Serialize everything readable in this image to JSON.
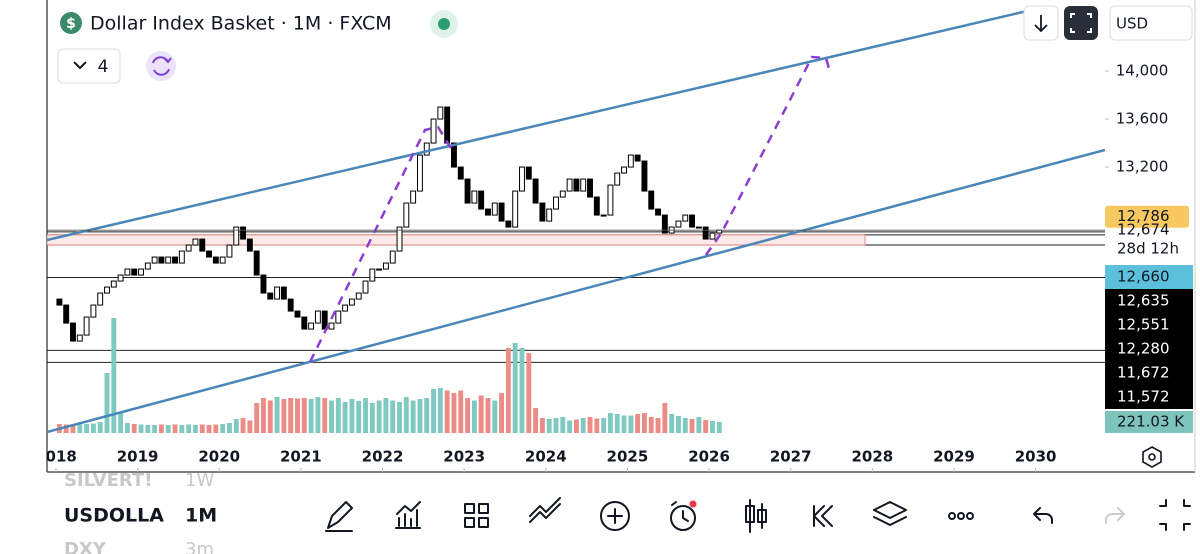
{
  "header": {
    "symbol_icon": "$",
    "title": "Dollar Index Basket · 1M · FXCM",
    "indicator_count": "4",
    "currency": "USD"
  },
  "chart_data": {
    "type": "candlestick",
    "first_open": 12100,
    "closes": [
      12050,
      11900,
      11750,
      11800,
      11950,
      12050,
      12150,
      12200,
      12250,
      12300,
      12350,
      12300,
      12350,
      12400,
      12450,
      12400,
      12450,
      12400,
      12500,
      12550,
      12600,
      12500,
      12450,
      12400,
      12450,
      12550,
      12700,
      12600,
      12500,
      12300,
      12150,
      12100,
      12200,
      12100,
      12000,
      11950,
      11850,
      11900,
      12000,
      11850,
      11900,
      12000,
      12050,
      12100,
      12150,
      12250,
      12350,
      12350,
      12400,
      12500,
      12700,
      12900,
      13000,
      13300,
      13400,
      13600,
      13700,
      13400,
      13200,
      13100,
      12900,
      13000,
      12850,
      12800,
      12900,
      12750,
      12700,
      13000,
      13200,
      13100,
      12900,
      12750,
      12850,
      12950,
      13000,
      13100,
      13000,
      13100,
      12950,
      12800,
      12800,
      13050,
      13150,
      13200,
      13300,
      13250,
      13000,
      12850,
      12800,
      12650,
      12700,
      12750,
      12800,
      12700,
      12700,
      12600,
      12650,
      12674
    ],
    "volume": [
      180,
      170,
      160,
      170,
      180,
      190,
      220,
      1200,
      2300,
      400,
      200,
      180,
      170,
      160,
      160,
      170,
      160,
      170,
      160,
      170,
      160,
      170,
      160,
      170,
      180,
      200,
      280,
      300,
      250,
      600,
      700,
      650,
      720,
      680,
      700,
      690,
      700,
      680,
      720,
      700,
      650,
      700,
      620,
      680,
      640,
      700,
      600,
      650,
      700,
      650,
      620,
      720,
      650,
      680,
      700,
      880,
      900,
      850,
      800,
      850,
      700,
      650,
      750,
      700,
      650,
      800,
      1700,
      1800,
      1700,
      1600,
      500,
      300,
      280,
      300,
      320,
      250,
      270,
      300,
      320,
      290,
      300,
      400,
      380,
      350,
      350,
      380,
      400,
      320,
      300,
      600,
      380,
      340,
      300,
      280,
      320,
      260,
      240,
      221.03
    ],
    "up_color": "#ffffff",
    "down_color": "#000000",
    "volume_up_color": "#80c9c1",
    "volume_down_color": "#ec8c86",
    "ylim": [
      10659,
      14592
    ],
    "yticks": [
      {
        "value": 14000,
        "label": "14,000"
      },
      {
        "value": 13600,
        "label": "13,600"
      },
      {
        "value": 13200,
        "label": "13,200"
      }
    ],
    "vlim": [
      0,
      8660
    ],
    "xlim": [
      2017.89,
      2030.85
    ],
    "xticks": [
      2018,
      2019,
      2020,
      2021,
      2022,
      2023,
      2024,
      2025,
      2026,
      2027,
      2028,
      2029,
      2030
    ],
    "ma_label": {
      "value": 12786,
      "label": "12,786"
    },
    "last_price": {
      "value": 12674,
      "label": "12,674"
    },
    "countdown": "28d 12h",
    "levels": [
      {
        "value": 12660,
        "label": "12,660"
      },
      {
        "value": 12635,
        "label": "12,635"
      },
      {
        "value": 12551,
        "label": "12,551"
      },
      {
        "value": 12280,
        "label": "12,280"
      },
      {
        "value": 11672,
        "label": "11,672"
      },
      {
        "value": 11572,
        "label": "11,572"
      }
    ],
    "volume_label": {
      "value": 221.03,
      "label": "221.03 K"
    }
  },
  "watchlist": [
    {
      "symbol": "SILVERT!",
      "interval": "1W"
    },
    {
      "symbol": "USDOLLA",
      "interval": "1M"
    },
    {
      "symbol": "DXY",
      "interval": "3m"
    }
  ]
}
